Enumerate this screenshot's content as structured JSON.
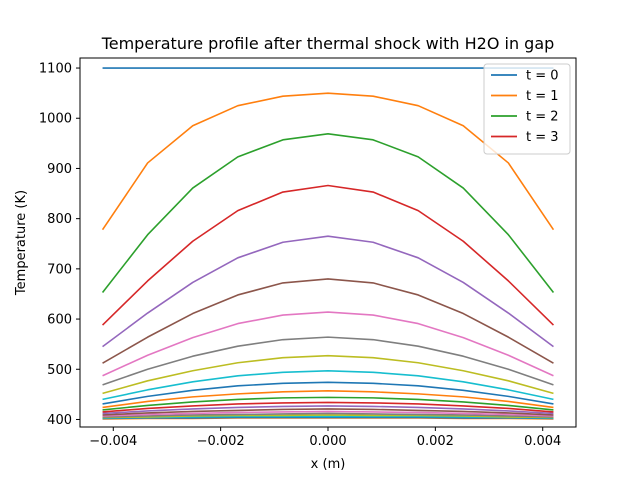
{
  "chart_data": {
    "type": "line",
    "title": "Temperature profile after thermal shock with H2O in gap",
    "xlabel": "x (m)",
    "ylabel": "Temperature (K)",
    "xlim": [
      -0.00462,
      0.00462
    ],
    "ylim": [
      385,
      1120
    ],
    "xticks": [
      -0.004,
      -0.002,
      0.0,
      0.002,
      0.004
    ],
    "xtick_labels": [
      "−0.004",
      "−0.002",
      "0.000",
      "0.002",
      "0.004"
    ],
    "yticks": [
      400,
      500,
      600,
      700,
      800,
      900,
      1000,
      1100
    ],
    "ytick_labels": [
      "400",
      "500",
      "600",
      "700",
      "800",
      "900",
      "1000",
      "1100"
    ],
    "legend_position": "top-right",
    "x": [
      -0.0042,
      -0.00336,
      -0.00252,
      -0.00168,
      -0.00084,
      0.0,
      0.00084,
      0.00168,
      0.00252,
      0.00336,
      0.0042
    ],
    "series": [
      {
        "name": "t = 0",
        "color": "#1f77b4",
        "values": [
          1100,
          1100,
          1100,
          1100,
          1100,
          1100,
          1100,
          1100,
          1100,
          1100,
          1100
        ]
      },
      {
        "name": "t = 1",
        "color": "#ff7f0e",
        "values": [
          778,
          911,
          985,
          1025,
          1044,
          1050,
          1044,
          1025,
          985,
          911,
          778
        ]
      },
      {
        "name": "t = 2",
        "color": "#2ca02c",
        "values": [
          653,
          768,
          861,
          923,
          957,
          969,
          957,
          923,
          861,
          768,
          653
        ]
      },
      {
        "name": "t = 3",
        "color": "#d62728",
        "values": [
          588,
          676,
          755,
          816,
          853,
          866,
          853,
          816,
          755,
          676,
          588
        ]
      },
      {
        "color": "#9467bd",
        "values": [
          545,
          612,
          673,
          722,
          753,
          765,
          753,
          722,
          673,
          612,
          545
        ]
      },
      {
        "color": "#8c564b",
        "values": [
          512,
          564,
          611,
          648,
          672,
          680,
          672,
          648,
          611,
          564,
          512
        ]
      },
      {
        "color": "#e377c2",
        "values": [
          487,
          528,
          563,
          591,
          608,
          614,
          608,
          591,
          563,
          528,
          487
        ]
      },
      {
        "color": "#7f7f7f",
        "values": [
          469,
          500,
          526,
          546,
          559,
          564,
          559,
          546,
          526,
          500,
          469
        ]
      },
      {
        "color": "#bcbd22",
        "values": [
          452,
          477,
          497,
          513,
          523,
          527,
          523,
          513,
          497,
          477,
          452
        ]
      },
      {
        "color": "#17becf",
        "values": [
          440,
          459,
          475,
          487,
          494,
          497,
          494,
          487,
          475,
          459,
          440
        ]
      },
      {
        "color": "#1f77b4",
        "values": [
          431,
          446,
          458,
          467,
          472,
          474,
          472,
          467,
          458,
          446,
          431
        ]
      },
      {
        "color": "#ff7f0e",
        "values": [
          424,
          436,
          445,
          451,
          455,
          457,
          455,
          451,
          445,
          436,
          424
        ]
      },
      {
        "color": "#2ca02c",
        "values": [
          419,
          428,
          435,
          440,
          443,
          444,
          443,
          440,
          435,
          428,
          419
        ]
      },
      {
        "color": "#d62728",
        "values": [
          415,
          422,
          427,
          431,
          433,
          434,
          433,
          431,
          427,
          422,
          415
        ]
      },
      {
        "color": "#9467bd",
        "values": [
          412,
          417,
          421,
          424,
          426,
          427,
          426,
          424,
          421,
          417,
          412
        ]
      },
      {
        "color": "#8c564b",
        "values": [
          409,
          413,
          416,
          418,
          420,
          421,
          420,
          418,
          416,
          413,
          409
        ]
      },
      {
        "color": "#e377c2",
        "values": [
          407,
          410,
          412,
          414,
          415,
          416,
          415,
          414,
          412,
          410,
          407
        ]
      },
      {
        "color": "#7f7f7f",
        "values": [
          405,
          407,
          409,
          410,
          411,
          412,
          411,
          410,
          409,
          407,
          405
        ]
      },
      {
        "color": "#bcbd22",
        "values": [
          404,
          405,
          407,
          408,
          408,
          409,
          408,
          408,
          407,
          405,
          404
        ]
      },
      {
        "color": "#17becf",
        "values": [
          403,
          404,
          405,
          406,
          406,
          406,
          406,
          406,
          405,
          404,
          403
        ]
      },
      {
        "color": "#1f77b4",
        "values": [
          402,
          403,
          403,
          404,
          404,
          404,
          404,
          404,
          403,
          403,
          402
        ]
      },
      {
        "color": "#ff7f0e",
        "values": [
          401,
          402,
          402,
          403,
          403,
          403,
          403,
          403,
          402,
          402,
          401
        ]
      }
    ]
  }
}
